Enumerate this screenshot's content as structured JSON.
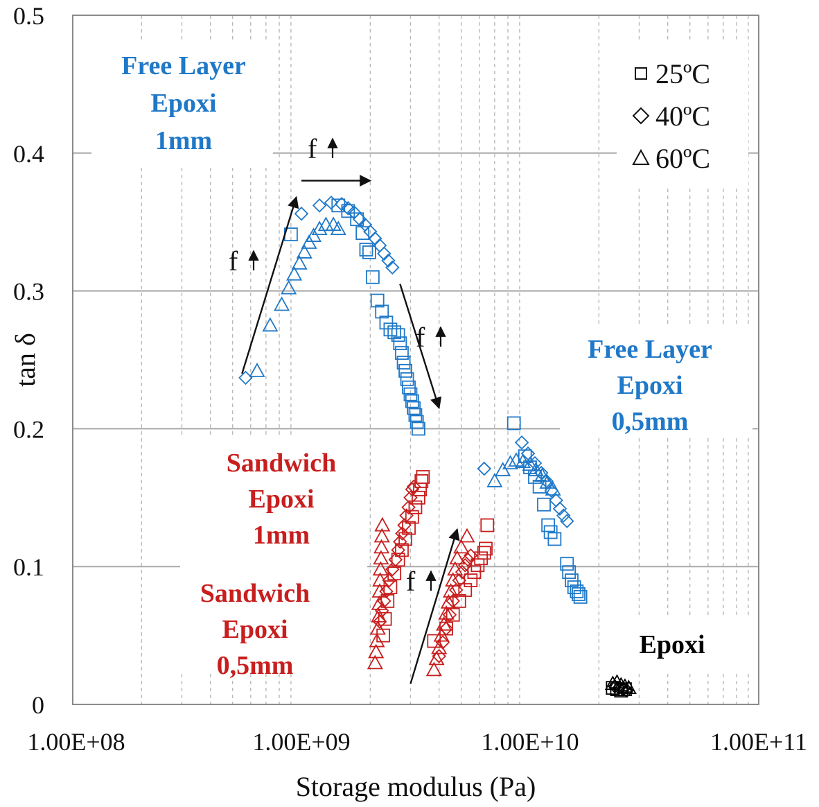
{
  "chart_data": {
    "type": "scatter",
    "title": "",
    "xlabel": "Storage modulus (Pa)",
    "ylabel": "tan δ",
    "xscale": "log",
    "xlim": [
      100000000,
      100000000000
    ],
    "ylim": [
      0,
      0.5
    ],
    "x_tick_labels": [
      "1.00E+08",
      "1.00E+09",
      "1.00E+10",
      "1.00E+11"
    ],
    "x_ticks": [
      100000000,
      1000000000,
      10000000000,
      100000000000
    ],
    "y_ticks": [
      0,
      0.1,
      0.2,
      0.3,
      0.4,
      0.5
    ],
    "y_tick_labels": [
      "0",
      "0.1",
      "0.2",
      "0.3",
      "0.4",
      "0.5"
    ],
    "grid": {
      "major_y": true,
      "minor_x_dashed": true
    },
    "legend": {
      "position": "top-right",
      "entries": [
        {
          "marker": "square",
          "label": "25ºC"
        },
        {
          "marker": "diamond",
          "label": "40ºC"
        },
        {
          "marker": "triangle",
          "label": "60ºC"
        }
      ]
    },
    "colors": {
      "free_layer": "#1f78c8",
      "sandwich": "#c81e1e",
      "epoxi": "#000000"
    },
    "annotations": [
      {
        "id": "fl1",
        "lines": [
          "Free Layer",
          "Epoxi",
          "1mm"
        ],
        "color": "#1f78c8"
      },
      {
        "id": "fl05",
        "lines": [
          "Free Layer",
          "Epoxi",
          "0,5mm"
        ],
        "color": "#1f78c8"
      },
      {
        "id": "sw1",
        "lines": [
          "Sandwich",
          "Epoxi",
          "1mm"
        ],
        "color": "#c81e1e"
      },
      {
        "id": "sw05",
        "lines": [
          "Sandwich",
          "Epoxi",
          "0,5mm"
        ],
        "color": "#c81e1e"
      },
      {
        "id": "ep",
        "lines": [
          "Epoxi"
        ],
        "color": "#000000"
      }
    ],
    "frequency_label": "f",
    "frequency_arrows": [
      {
        "from": [
          550000000,
          0.24
        ],
        "to": [
          950000000,
          0.368
        ]
      },
      {
        "from": [
          1000000000,
          0.38
        ],
        "to": [
          2000000000,
          0.38
        ]
      },
      {
        "from": [
          2700000000,
          0.305
        ],
        "to": [
          4000000000,
          0.215
        ]
      },
      {
        "from": [
          3000000000,
          0.015
        ],
        "to": [
          4800000000,
          0.127
        ]
      }
    ],
    "series": [
      {
        "group": "Free Layer Epoxi 1mm",
        "marker": "diamond",
        "temperature": "40ºC",
        "points": [
          [
            570000000,
            0.237
          ],
          [
            1000000000,
            0.356
          ],
          [
            1200000000,
            0.362
          ],
          [
            1350000000,
            0.364
          ],
          [
            1500000000,
            0.363
          ],
          [
            1600000000,
            0.36
          ],
          [
            1700000000,
            0.357
          ],
          [
            1800000000,
            0.352
          ],
          [
            1900000000,
            0.348
          ],
          [
            2000000000,
            0.343
          ],
          [
            2100000000,
            0.338
          ],
          [
            2200000000,
            0.333
          ],
          [
            2300000000,
            0.327
          ],
          [
            2400000000,
            0.322
          ],
          [
            2500000000,
            0.317
          ]
        ]
      },
      {
        "group": "Free Layer Epoxi 1mm",
        "marker": "triangle",
        "temperature": "60ºC",
        "points": [
          [
            640000000,
            0.242
          ],
          [
            730000000,
            0.275
          ],
          [
            820000000,
            0.29
          ],
          [
            880000000,
            0.302
          ],
          [
            930000000,
            0.312
          ],
          [
            980000000,
            0.32
          ],
          [
            1030000000,
            0.328
          ],
          [
            1080000000,
            0.335
          ],
          [
            1130000000,
            0.34
          ],
          [
            1200000000,
            0.345
          ],
          [
            1280000000,
            0.348
          ],
          [
            1380000000,
            0.348
          ],
          [
            1450000000,
            0.345
          ]
        ]
      },
      {
        "group": "Free Layer Epoxi 1mm",
        "marker": "square",
        "temperature": "25ºC",
        "points": [
          [
            900000000,
            0.341
          ],
          [
            1450000000,
            0.362
          ],
          [
            1600000000,
            0.358
          ],
          [
            1750000000,
            0.352
          ],
          [
            1850000000,
            0.342
          ],
          [
            1920000000,
            0.33
          ],
          [
            1980000000,
            0.328
          ],
          [
            2050000000,
            0.31
          ],
          [
            2150000000,
            0.293
          ],
          [
            2250000000,
            0.285
          ],
          [
            2350000000,
            0.277
          ],
          [
            2450000000,
            0.272
          ],
          [
            2550000000,
            0.27
          ],
          [
            2650000000,
            0.268
          ],
          [
            2700000000,
            0.262
          ],
          [
            2750000000,
            0.255
          ],
          [
            2800000000,
            0.248
          ],
          [
            2850000000,
            0.242
          ],
          [
            2900000000,
            0.236
          ],
          [
            2950000000,
            0.23
          ],
          [
            3000000000,
            0.225
          ],
          [
            3050000000,
            0.22
          ],
          [
            3100000000,
            0.215
          ],
          [
            3150000000,
            0.21
          ],
          [
            3200000000,
            0.205
          ],
          [
            3250000000,
            0.2
          ]
        ]
      },
      {
        "group": "Free Layer Epoxi 0,5mm",
        "marker": "square",
        "temperature": "25ºC",
        "points": [
          [
            8500000000,
            0.204
          ],
          [
            9500000000,
            0.18
          ],
          [
            10000000000,
            0.172
          ],
          [
            10500000000,
            0.165
          ],
          [
            11000000000,
            0.158
          ],
          [
            11500000000,
            0.145
          ],
          [
            12000000000,
            0.13
          ],
          [
            12300000000,
            0.125
          ],
          [
            12800000000,
            0.12
          ],
          [
            14500000000,
            0.102
          ],
          [
            14800000000,
            0.096
          ],
          [
            15200000000,
            0.09
          ],
          [
            15600000000,
            0.085
          ],
          [
            16000000000,
            0.082
          ],
          [
            16300000000,
            0.08
          ],
          [
            16600000000,
            0.078
          ]
        ]
      },
      {
        "group": "Free Layer Epoxi 0,5mm",
        "marker": "diamond",
        "temperature": "40ºC",
        "points": [
          [
            6300000000,
            0.171
          ],
          [
            9200000000,
            0.19
          ],
          [
            9800000000,
            0.182
          ],
          [
            10500000000,
            0.175
          ],
          [
            11200000000,
            0.168
          ],
          [
            11800000000,
            0.162
          ],
          [
            12400000000,
            0.155
          ],
          [
            13000000000,
            0.148
          ],
          [
            13500000000,
            0.142
          ],
          [
            14000000000,
            0.137
          ],
          [
            14500000000,
            0.133
          ]
        ]
      },
      {
        "group": "Free Layer Epoxi 0,5mm",
        "marker": "triangle",
        "temperature": "60ºC",
        "points": [
          [
            7000000000,
            0.162
          ],
          [
            7600000000,
            0.17
          ],
          [
            8200000000,
            0.175
          ],
          [
            8700000000,
            0.177
          ],
          [
            9300000000,
            0.176
          ],
          [
            10000000000,
            0.174
          ],
          [
            10600000000,
            0.17
          ],
          [
            11300000000,
            0.166
          ],
          [
            11900000000,
            0.161
          ],
          [
            12600000000,
            0.156
          ]
        ]
      },
      {
        "group": "Sandwich Epoxi 1mm",
        "marker": "diamond",
        "temperature": "40ºC",
        "points": [
          [
            2200000000,
            0.06
          ],
          [
            2250000000,
            0.068
          ],
          [
            2300000000,
            0.075
          ],
          [
            2350000000,
            0.082
          ],
          [
            2420000000,
            0.09
          ],
          [
            2500000000,
            0.098
          ],
          [
            2580000000,
            0.105
          ],
          [
            2650000000,
            0.112
          ],
          [
            2700000000,
            0.118
          ],
          [
            2760000000,
            0.124
          ],
          [
            2820000000,
            0.13
          ],
          [
            2880000000,
            0.137
          ],
          [
            2940000000,
            0.143
          ],
          [
            3000000000,
            0.15
          ],
          [
            3050000000,
            0.156
          ],
          [
            3100000000,
            0.158
          ]
        ]
      },
      {
        "group": "Sandwich Epoxi 1mm",
        "marker": "triangle",
        "temperature": "60ºC",
        "points": [
          [
            2100000000,
            0.03
          ],
          [
            2120000000,
            0.038
          ],
          [
            2140000000,
            0.046
          ],
          [
            2160000000,
            0.055
          ],
          [
            2180000000,
            0.064
          ],
          [
            2190000000,
            0.073
          ],
          [
            2200000000,
            0.082
          ],
          [
            2210000000,
            0.09
          ],
          [
            2220000000,
            0.098
          ],
          [
            2230000000,
            0.106
          ],
          [
            2240000000,
            0.114
          ],
          [
            2250000000,
            0.122
          ],
          [
            2260000000,
            0.13
          ]
        ]
      },
      {
        "group": "Sandwich Epoxi 1mm",
        "marker": "square",
        "temperature": "25ºC",
        "points": [
          [
            2280000000,
            0.05
          ],
          [
            2320000000,
            0.062
          ],
          [
            2380000000,
            0.075
          ],
          [
            2450000000,
            0.085
          ],
          [
            2550000000,
            0.095
          ],
          [
            2650000000,
            0.105
          ],
          [
            2750000000,
            0.112
          ],
          [
            2850000000,
            0.12
          ],
          [
            2950000000,
            0.128
          ],
          [
            3050000000,
            0.136
          ],
          [
            3150000000,
            0.143
          ],
          [
            3250000000,
            0.15
          ],
          [
            3300000000,
            0.156
          ],
          [
            3350000000,
            0.162
          ],
          [
            3400000000,
            0.165
          ]
        ]
      },
      {
        "group": "Sandwich Epoxi 0,5mm",
        "marker": "triangle",
        "temperature": "60ºC",
        "points": [
          [
            3800000000,
            0.025
          ],
          [
            3900000000,
            0.033
          ],
          [
            4000000000,
            0.041
          ],
          [
            4100000000,
            0.05
          ],
          [
            4200000000,
            0.058
          ],
          [
            4300000000,
            0.066
          ],
          [
            4400000000,
            0.074
          ],
          [
            4500000000,
            0.082
          ],
          [
            4600000000,
            0.09
          ],
          [
            4700000000,
            0.098
          ],
          [
            4800000000,
            0.106
          ],
          [
            5000000000,
            0.114
          ],
          [
            5300000000,
            0.122
          ]
        ]
      },
      {
        "group": "Sandwich Epoxi 0,5mm",
        "marker": "diamond",
        "temperature": "40ºC",
        "points": [
          [
            4000000000,
            0.035
          ],
          [
            4150000000,
            0.045
          ],
          [
            4300000000,
            0.055
          ],
          [
            4450000000,
            0.065
          ],
          [
            4600000000,
            0.075
          ],
          [
            4750000000,
            0.083
          ],
          [
            4900000000,
            0.09
          ],
          [
            5050000000,
            0.096
          ],
          [
            5200000000,
            0.101
          ],
          [
            5350000000,
            0.105
          ],
          [
            5500000000,
            0.108
          ]
        ]
      },
      {
        "group": "Sandwich Epoxi 0,5mm",
        "marker": "square",
        "temperature": "25ºC",
        "points": [
          [
            3800000000,
            0.046
          ],
          [
            4300000000,
            0.055
          ],
          [
            4600000000,
            0.065
          ],
          [
            4900000000,
            0.075
          ],
          [
            5200000000,
            0.083
          ],
          [
            5500000000,
            0.09
          ],
          [
            5700000000,
            0.096
          ],
          [
            5900000000,
            0.101
          ],
          [
            6100000000,
            0.106
          ],
          [
            6300000000,
            0.11
          ],
          [
            6400000000,
            0.113
          ],
          [
            6500000000,
            0.13
          ]
        ]
      },
      {
        "group": "Epoxi",
        "marker": "triangle",
        "temperature": "60ºC",
        "points": [
          [
            23000000000,
            0.015
          ],
          [
            24000000000,
            0.016
          ],
          [
            25000000000,
            0.014
          ],
          [
            26000000000,
            0.013
          ],
          [
            27000000000,
            0.012
          ]
        ]
      },
      {
        "group": "Epoxi",
        "marker": "diamond",
        "temperature": "40ºC",
        "points": [
          [
            23500000000,
            0.013
          ],
          [
            24500000000,
            0.012
          ],
          [
            25500000000,
            0.011
          ],
          [
            26500000000,
            0.01
          ]
        ]
      },
      {
        "group": "Epoxi",
        "marker": "square",
        "temperature": "25ºC",
        "points": [
          [
            23000000000,
            0.012
          ],
          [
            24000000000,
            0.011
          ],
          [
            25000000000,
            0.01
          ],
          [
            26000000000,
            0.011
          ]
        ]
      }
    ]
  }
}
